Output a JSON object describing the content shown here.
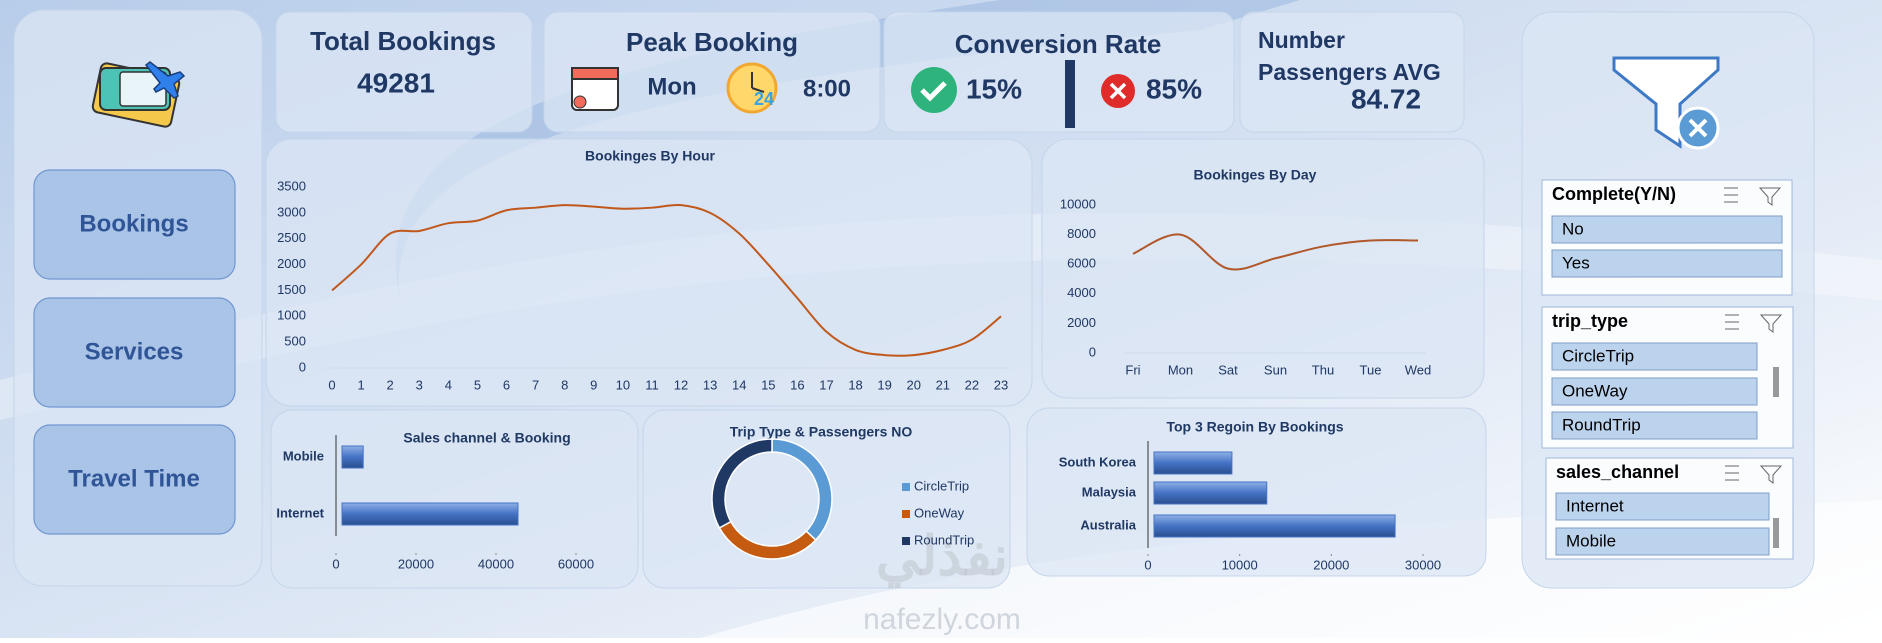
{
  "nav": {
    "items": [
      "Bookings",
      "Services",
      "Travel Time"
    ]
  },
  "kpis": {
    "total": {
      "title": "Total Bookings",
      "value": "49281"
    },
    "peak": {
      "title": "Peak Booking",
      "day": "Mon",
      "time": "8:00"
    },
    "conversion": {
      "title": "Conversion Rate",
      "yes": "15%",
      "no": "85%"
    },
    "passengers": {
      "title_line1": "Number",
      "title_line2": "Passengers AVG",
      "value": "84.72"
    }
  },
  "slicers": [
    {
      "title": "Complete(Y/N)",
      "items": [
        "No",
        "Yes"
      ]
    },
    {
      "title": "trip_type",
      "items": [
        "CircleTrip",
        "OneWay",
        "RoundTrip"
      ]
    },
    {
      "title": "sales_channel",
      "items": [
        "Internet",
        "Mobile"
      ]
    }
  ],
  "watermark": {
    "arabic": "نفذلي",
    "latin": "nafezly.com"
  },
  "chart_data": [
    {
      "type": "line",
      "title": "Bookinges By Hour",
      "categories": [
        "0",
        "1",
        "2",
        "3",
        "4",
        "5",
        "6",
        "7",
        "8",
        "9",
        "10",
        "11",
        "12",
        "13",
        "14",
        "15",
        "16",
        "17",
        "18",
        "19",
        "20",
        "21",
        "22",
        "23"
      ],
      "values": [
        1500,
        2000,
        2600,
        2650,
        2800,
        2850,
        3050,
        3100,
        3150,
        3120,
        3080,
        3100,
        3150,
        3000,
        2600,
        2000,
        1350,
        700,
        350,
        250,
        250,
        350,
        550,
        1000
      ],
      "color": "#c0581c",
      "ylim": [
        0,
        3500
      ],
      "yticks": [
        0,
        500,
        1000,
        1500,
        2000,
        2500,
        3000,
        3500
      ]
    },
    {
      "type": "line",
      "title": "Bookinges By Day",
      "categories": [
        "Fri",
        "Mon",
        "Sat",
        "Sun",
        "Thu",
        "Tue",
        "Wed"
      ],
      "values": [
        6700,
        8000,
        5700,
        6400,
        7200,
        7600,
        7600
      ],
      "color": "#b0582a",
      "ylim": [
        0,
        10000
      ],
      "yticks": [
        0,
        2000,
        4000,
        6000,
        8000,
        10000
      ]
    },
    {
      "type": "bar",
      "orientation": "horizontal",
      "title": "Sales channel & Booking",
      "categories": [
        "Mobile",
        "Internet"
      ],
      "values": [
        5300,
        44000
      ],
      "color": "#4472c4",
      "xlim": [
        0,
        60000
      ],
      "xticks": [
        0,
        20000,
        40000,
        60000
      ]
    },
    {
      "type": "pie",
      "donut": true,
      "title": "Trip Type & Passengers NO",
      "categories": [
        "CircleTrip",
        "OneWay",
        "RoundTrip"
      ],
      "values": [
        37,
        30,
        33
      ],
      "colors": [
        "#5b9bd5",
        "#c55a11",
        "#203864"
      ]
    },
    {
      "type": "bar",
      "orientation": "horizontal",
      "title": "Top 3 Regoin By Bookings",
      "categories": [
        "South Korea",
        "Malaysia",
        "Australia"
      ],
      "values": [
        8500,
        12300,
        26300
      ],
      "color": "#4472c4",
      "xlim": [
        0,
        30000
      ],
      "xticks": [
        0,
        10000,
        20000,
        30000
      ]
    }
  ]
}
